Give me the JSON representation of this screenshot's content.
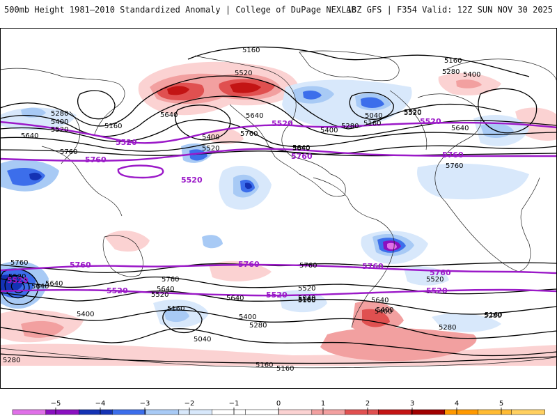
{
  "header": {
    "title_left": "500mb Height 1981–2010 Standardized Anomaly | College of DuPage NEXLAB",
    "title_right": "18Z GFS | F354 Valid: 12Z SUN NOV 30 2025"
  },
  "map": {
    "projection": "global-cylindrical",
    "contour_labels": [
      "5160",
      "5160",
      "5280",
      "5400",
      "5520",
      "5520",
      "5640",
      "5640",
      "5760",
      "5280",
      "5400",
      "5520",
      "5160",
      "5400",
      "5640",
      "5760",
      "5520",
      "5640",
      "5640",
      "5280",
      "5400",
      "5160",
      "5040",
      "5520",
      "5640",
      "5760",
      "5760",
      "5640",
      "5520",
      "5640",
      "5760",
      "5760",
      "5520",
      "5400",
      "5160",
      "5040",
      "5280",
      "5400",
      "5520",
      "5640",
      "5160",
      "5400",
      "5280",
      "5640",
      "5520",
      "5640",
      "5400",
      "5280",
      "5160",
      "5040",
      "5280",
      "5160",
      "5160",
      "5160"
    ],
    "highlight_labels": [
      "5520",
      "5520",
      "5520",
      "5520",
      "5760",
      "5760",
      "5760",
      "5760",
      "5760",
      "5760",
      "5760",
      "5520",
      "5520",
      "5520",
      "5520"
    ],
    "colors": {
      "contour": "#000000",
      "highlight_contour": "#9b19c8",
      "land": "#222222"
    }
  },
  "colorbar": {
    "ticks": [
      "−5",
      "−4",
      "−3",
      "−2",
      "−1",
      "0",
      "1",
      "2",
      "3",
      "4",
      "5"
    ],
    "colors": [
      "#e070e8",
      "#8a10c0",
      "#1432b4",
      "#3c6eeb",
      "#a8caf5",
      "#d8e8fb",
      "#ffffff",
      "#ffffff",
      "#fbd2d2",
      "#f2a0a0",
      "#e05050",
      "#c31414",
      "#a00000",
      "#ff9900",
      "#ffbb33",
      "#ffd060"
    ]
  }
}
